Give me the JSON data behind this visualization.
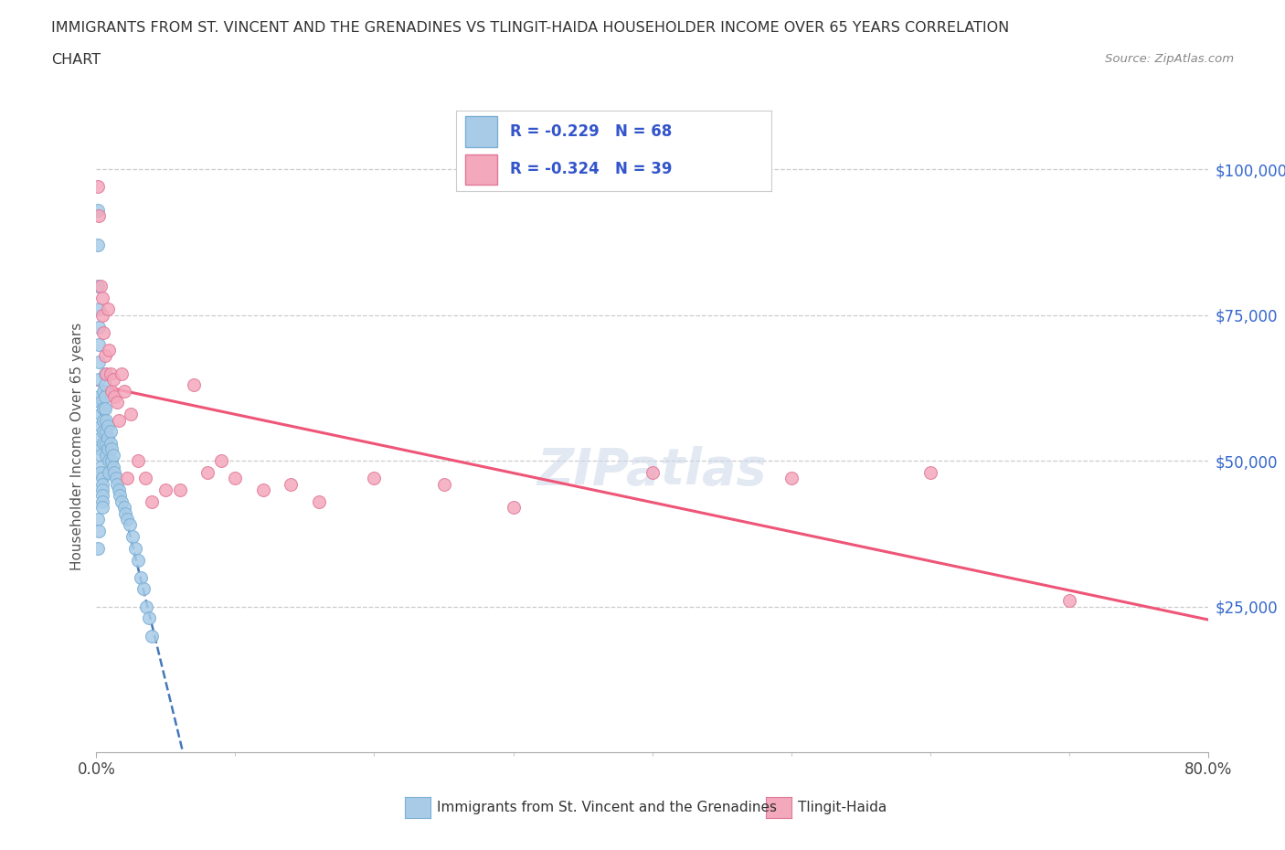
{
  "title_line1": "IMMIGRANTS FROM ST. VINCENT AND THE GRENADINES VS TLINGIT-HAIDA HOUSEHOLDER INCOME OVER 65 YEARS CORRELATION",
  "title_line2": "CHART",
  "source_text": "Source: ZipAtlas.com",
  "ylabel": "Householder Income Over 65 years",
  "xmin": 0.0,
  "xmax": 0.8,
  "ymin": 0,
  "ymax": 105000,
  "ytick_labels": [
    "$25,000",
    "$50,000",
    "$75,000",
    "$100,000"
  ],
  "ytick_values": [
    25000,
    50000,
    75000,
    100000
  ],
  "xtick_labels": [
    "0.0%",
    "80.0%"
  ],
  "series1_color": "#a8cce8",
  "series1_edge": "#7bafd4",
  "series2_color": "#f4a8bc",
  "series2_edge": "#e07898",
  "trendline1_color": "#4477bb",
  "trendline2_color": "#ee5577",
  "legend_R1": "R = -0.229",
  "legend_N1": "N = 68",
  "legend_R2": "R = -0.324",
  "legend_N2": "N = 39",
  "legend_text_color": "#3355CC",
  "watermark": "ZIPatlas",
  "series1_label": "Immigrants from St. Vincent and the Grenadines",
  "series2_label": "Tlingit-Haida",
  "blue_x": [
    0.001,
    0.001,
    0.001,
    0.002,
    0.002,
    0.002,
    0.002,
    0.002,
    0.002,
    0.003,
    0.003,
    0.003,
    0.003,
    0.003,
    0.003,
    0.003,
    0.003,
    0.004,
    0.004,
    0.004,
    0.004,
    0.004,
    0.004,
    0.005,
    0.005,
    0.005,
    0.005,
    0.005,
    0.006,
    0.006,
    0.006,
    0.006,
    0.007,
    0.007,
    0.007,
    0.007,
    0.008,
    0.008,
    0.008,
    0.009,
    0.009,
    0.01,
    0.01,
    0.011,
    0.011,
    0.012,
    0.012,
    0.013,
    0.014,
    0.015,
    0.016,
    0.017,
    0.018,
    0.02,
    0.021,
    0.022,
    0.024,
    0.026,
    0.028,
    0.03,
    0.032,
    0.034,
    0.036,
    0.038,
    0.04,
    0.001,
    0.001,
    0.002
  ],
  "blue_y": [
    93000,
    87000,
    80000,
    76000,
    73000,
    70000,
    67000,
    64000,
    61000,
    60000,
    58000,
    56000,
    54000,
    52000,
    51000,
    49000,
    48000,
    47000,
    46000,
    45000,
    44000,
    43000,
    42000,
    62000,
    59000,
    57000,
    55000,
    53000,
    65000,
    63000,
    61000,
    59000,
    57000,
    55000,
    53000,
    51000,
    56000,
    54000,
    52000,
    50000,
    48000,
    55000,
    53000,
    52000,
    50000,
    51000,
    49000,
    48000,
    47000,
    46000,
    45000,
    44000,
    43000,
    42000,
    41000,
    40000,
    39000,
    37000,
    35000,
    33000,
    30000,
    28000,
    25000,
    23000,
    20000,
    40000,
    35000,
    38000
  ],
  "pink_x": [
    0.001,
    0.002,
    0.003,
    0.004,
    0.004,
    0.005,
    0.006,
    0.007,
    0.008,
    0.009,
    0.01,
    0.011,
    0.012,
    0.013,
    0.015,
    0.016,
    0.018,
    0.02,
    0.022,
    0.025,
    0.03,
    0.035,
    0.04,
    0.05,
    0.06,
    0.07,
    0.08,
    0.09,
    0.1,
    0.12,
    0.14,
    0.16,
    0.2,
    0.25,
    0.3,
    0.4,
    0.5,
    0.6,
    0.7
  ],
  "pink_y": [
    97000,
    92000,
    80000,
    75000,
    78000,
    72000,
    68000,
    65000,
    76000,
    69000,
    65000,
    62000,
    64000,
    61000,
    60000,
    57000,
    65000,
    62000,
    47000,
    58000,
    50000,
    47000,
    43000,
    45000,
    45000,
    63000,
    48000,
    50000,
    47000,
    45000,
    46000,
    43000,
    47000,
    46000,
    42000,
    48000,
    47000,
    48000,
    26000
  ]
}
